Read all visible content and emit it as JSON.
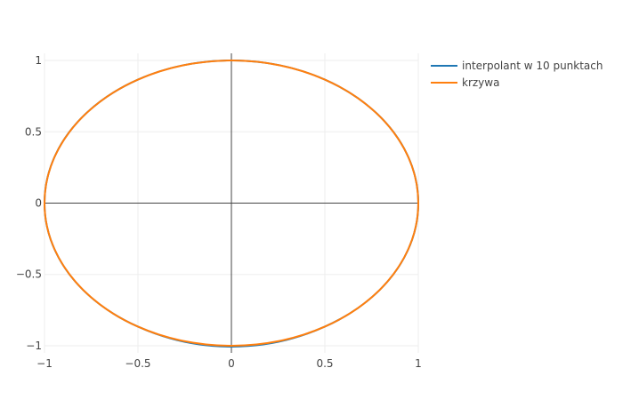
{
  "chart_data": {
    "type": "line",
    "title": "",
    "xlabel": "",
    "ylabel": "",
    "xlim": [
      -1,
      1
    ],
    "ylim": [
      -1.05,
      1.05
    ],
    "x_ticks": [
      -1,
      -0.5,
      0,
      0.5,
      1
    ],
    "x_tick_labels": [
      "−1",
      "−0.5",
      "0",
      "0.5",
      "1"
    ],
    "y_ticks": [
      1,
      0.5,
      0,
      -0.5,
      -1
    ],
    "y_tick_labels": [
      "1",
      "0.5",
      "0",
      "−0.5",
      "−1"
    ],
    "grid": true,
    "legend_position": "top-right, outside plot",
    "series": [
      {
        "name": "interpolant w 10 punktach",
        "color": "#1f77b4",
        "x": [
          1.0,
          0.94,
          0.766,
          0.5,
          0.174,
          -0.174,
          -0.5,
          -0.766,
          -0.94,
          -1.0,
          -0.94,
          -0.766,
          -0.5,
          -0.174,
          0.174,
          0.5,
          0.766,
          0.94,
          1.0
        ],
        "y": [
          0.0,
          0.342,
          0.643,
          0.866,
          0.985,
          0.985,
          0.866,
          0.643,
          0.342,
          0.0,
          -0.342,
          -0.643,
          -0.866,
          -0.99,
          -0.99,
          -0.866,
          -0.643,
          -0.342,
          0.0
        ]
      },
      {
        "name": "krzywa",
        "color": "#ff7f0e",
        "x": [
          1.0,
          0.966,
          0.866,
          0.707,
          0.5,
          0.259,
          0.0,
          -0.259,
          -0.5,
          -0.707,
          -0.866,
          -0.966,
          -1.0,
          -0.966,
          -0.866,
          -0.707,
          -0.5,
          -0.259,
          0.0,
          0.259,
          0.5,
          0.707,
          0.866,
          0.966,
          1.0
        ],
        "y": [
          0.0,
          0.259,
          0.5,
          0.707,
          0.866,
          0.966,
          1.0,
          0.966,
          0.866,
          0.707,
          0.5,
          0.259,
          0.0,
          -0.259,
          -0.5,
          -0.707,
          -0.866,
          -0.966,
          -1.0,
          -0.966,
          -0.866,
          -0.707,
          -0.5,
          -0.259,
          0.0
        ]
      }
    ]
  }
}
